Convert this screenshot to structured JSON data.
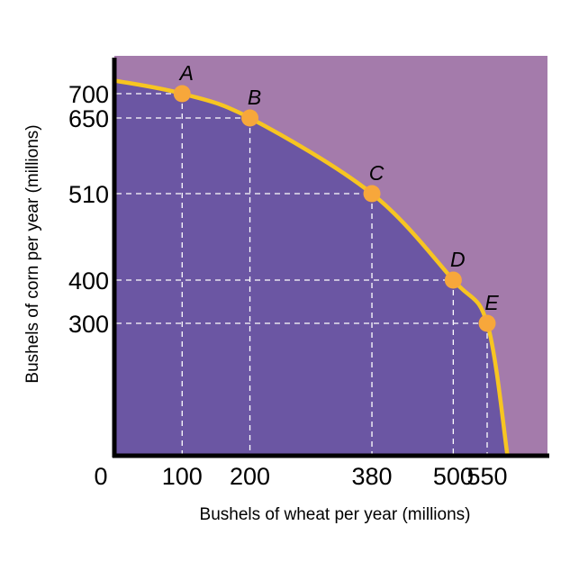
{
  "chart_data": {
    "type": "line",
    "title": "",
    "xlabel": "Bushels of wheat per year (millions)",
    "ylabel": "Bushels of corn per year (millions)",
    "origin_label": "0",
    "xlim": [
      0,
      600
    ],
    "ylim": [
      0,
      750
    ],
    "x_ticks": [
      100,
      200,
      380,
      500,
      550
    ],
    "x_tick_labels": [
      "100",
      "200",
      "380",
      "500",
      "550"
    ],
    "y_ticks": [
      700,
      650,
      510,
      400,
      300
    ],
    "y_tick_labels": [
      "700",
      "650",
      "510",
      "400",
      "300"
    ],
    "grid": false,
    "series": [
      {
        "x": [
          0,
          100,
          200,
          380,
          500,
          550,
          580
        ],
        "y": [
          727,
          700,
          650,
          510,
          400,
          300,
          0
        ]
      }
    ],
    "points": [
      {
        "label": "A",
        "x": 100,
        "y": 700
      },
      {
        "label": "B",
        "x": 200,
        "y": 650
      },
      {
        "label": "C",
        "x": 380,
        "y": 510
      },
      {
        "label": "D",
        "x": 500,
        "y": 400
      },
      {
        "label": "E",
        "x": 550,
        "y": 300
      }
    ]
  },
  "colors": {
    "inside_area": "#6b56a3",
    "outside_area": "#a47bab",
    "curve": "#f7c521",
    "points": "#f7a73b",
    "guides": "#ffffff",
    "axis": "#000000"
  }
}
